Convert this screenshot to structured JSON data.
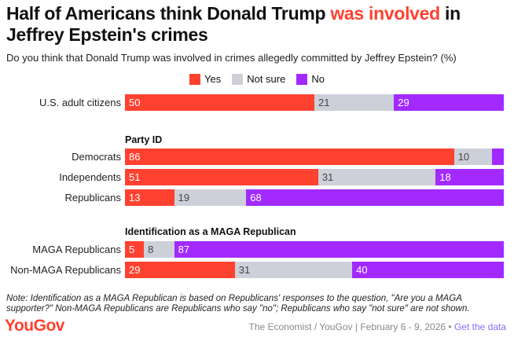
{
  "title_pre": "Half of Americans think Donald Trump ",
  "title_hl": "was involved",
  "title_post": " in Jeffrey Epstein's crimes",
  "subtitle": "Do you think that Donald Trump was involved in crimes allegedly committed by Jeffrey Epstein? (%)",
  "colors": {
    "Yes": "#ff4130",
    "Not sure": "#cdd0d9",
    "No": "#a22aff"
  },
  "chart_data": {
    "type": "bar",
    "stacked": true,
    "orientation": "horizontal",
    "title": "Half of Americans think Donald Trump was involved in Jeffrey Epstein's crimes",
    "legend": [
      "Yes",
      "Not sure",
      "No"
    ],
    "legend_position": "top",
    "groups": [
      "",
      "Party ID",
      "Identification as a MAGA Republican"
    ],
    "rows": [
      {
        "group": 0,
        "label": "U.S. adult citizens",
        "values": [
          50,
          21,
          29
        ],
        "labels": [
          "50",
          "21",
          "29"
        ]
      },
      {
        "group": 1,
        "label": "Democrats",
        "values": [
          86,
          10,
          3
        ],
        "labels": [
          "86",
          "10",
          ""
        ]
      },
      {
        "group": 1,
        "label": "Independents",
        "values": [
          51,
          31,
          18
        ],
        "labels": [
          "51",
          "31",
          "18"
        ]
      },
      {
        "group": 1,
        "label": "Republicans",
        "values": [
          13,
          19,
          68
        ],
        "labels": [
          "13",
          "19",
          "68"
        ]
      },
      {
        "group": 2,
        "label": "MAGA Republicans",
        "values": [
          5,
          8,
          87
        ],
        "labels": [
          "5",
          "8",
          "87"
        ]
      },
      {
        "group": 2,
        "label": "Non-MAGA Republicans",
        "values": [
          29,
          31,
          40
        ],
        "labels": [
          "29",
          "31",
          "40"
        ]
      }
    ]
  },
  "note": "Note: Identification as a MAGA Republican is based on Republicans' responses to the question, \"Are you a MAGA supporter?\" Non-MAGA Republicans are Republicans who say \"no\"; Republicans who say \"not sure\" are not shown.",
  "logo": "YouGov",
  "source": "The Economist / YouGov | February 6 - 9, 2026 • ",
  "get_data": "Get the data"
}
